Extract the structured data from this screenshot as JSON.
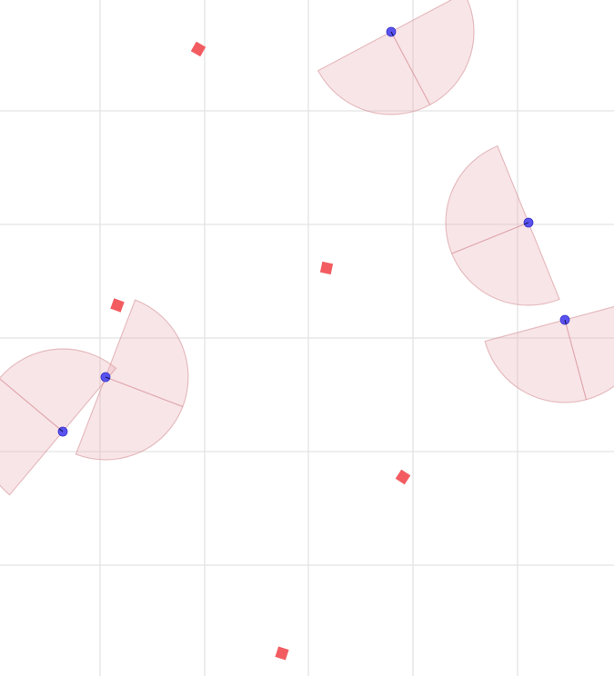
{
  "scene": {
    "grid_lines": true,
    "colors": {
      "background": "#ffffff",
      "grid_line": "#e3e3e3",
      "vision_cone_fill": "#e9b1b5",
      "vision_cone_stroke": "#d48f96",
      "guard_fill": "#5a52f0",
      "guard_stroke": "#3a34c8",
      "pickup_fill": "#f25c61"
    },
    "guards": [
      {
        "id": "guard-1",
        "facing_deg": 62,
        "fov_deg": 180
      },
      {
        "id": "guard-2",
        "facing_deg": 158,
        "fov_deg": 180
      },
      {
        "id": "guard-3",
        "facing_deg": 75,
        "fov_deg": 180
      },
      {
        "id": "guard-4",
        "facing_deg": 21,
        "fov_deg": 180
      },
      {
        "id": "guard-5",
        "facing_deg": 220,
        "fov_deg": 180
      }
    ],
    "pickups": [
      {
        "id": "pickup-1",
        "icon": "diamond-icon"
      },
      {
        "id": "pickup-2",
        "icon": "square-icon"
      },
      {
        "id": "pickup-3",
        "icon": "square-icon"
      },
      {
        "id": "pickup-4",
        "icon": "diamond-icon"
      },
      {
        "id": "pickup-5",
        "icon": "square-icon"
      }
    ]
  }
}
